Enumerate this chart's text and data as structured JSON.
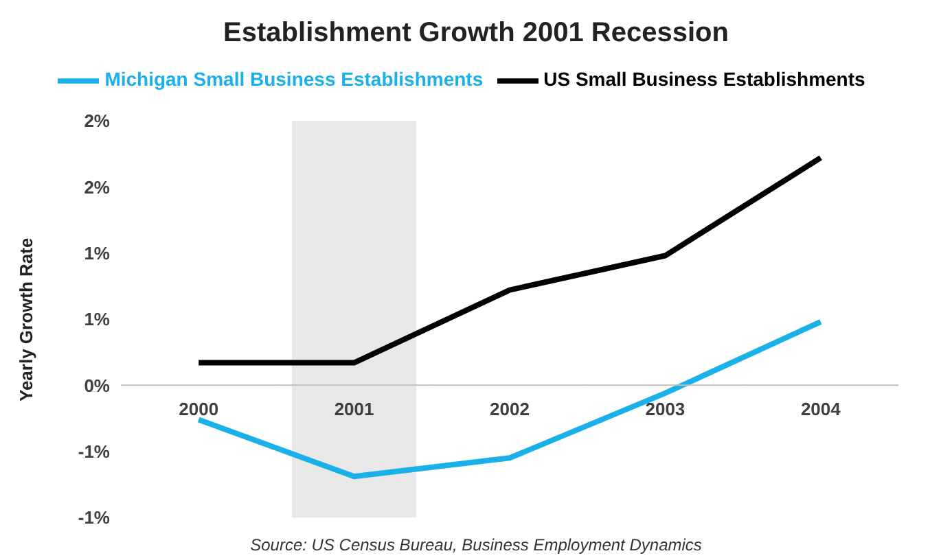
{
  "chart_data": {
    "type": "line",
    "title": "Establishment Growth 2001 Recession",
    "ylabel": "Yearly Growth Rate",
    "annotations": [
      "Source: US Census Bureau, Business Employment Dynamics"
    ],
    "categories": [
      "2000",
      "2001",
      "2002",
      "2003",
      "2004"
    ],
    "series": [
      {
        "name": "Michigan Small Business Establishments",
        "color": "#1ab0e8",
        "values": [
          -0.26,
          -0.69,
          -0.55,
          -0.06,
          0.48
        ]
      },
      {
        "name": "US Small Business Establishments",
        "color": "#000000",
        "values": [
          0.17,
          0.17,
          0.72,
          0.98,
          1.72
        ]
      }
    ],
    "ylim": [
      -1,
      2
    ],
    "yticks": [
      {
        "value": -1,
        "label": "-1%"
      },
      {
        "value": -0.5,
        "label": "-1%"
      },
      {
        "value": 0,
        "label": "0%"
      },
      {
        "value": 0.5,
        "label": "1%"
      },
      {
        "value": 1,
        "label": "1%"
      },
      {
        "value": 1.5,
        "label": "2%"
      },
      {
        "value": 2,
        "label": "2%"
      }
    ],
    "bands": [
      {
        "axis": "x",
        "from": "2001",
        "to": "2001",
        "color": "#d9d9d9"
      }
    ],
    "legend": "top",
    "marker": "none",
    "line_style": "solid"
  }
}
